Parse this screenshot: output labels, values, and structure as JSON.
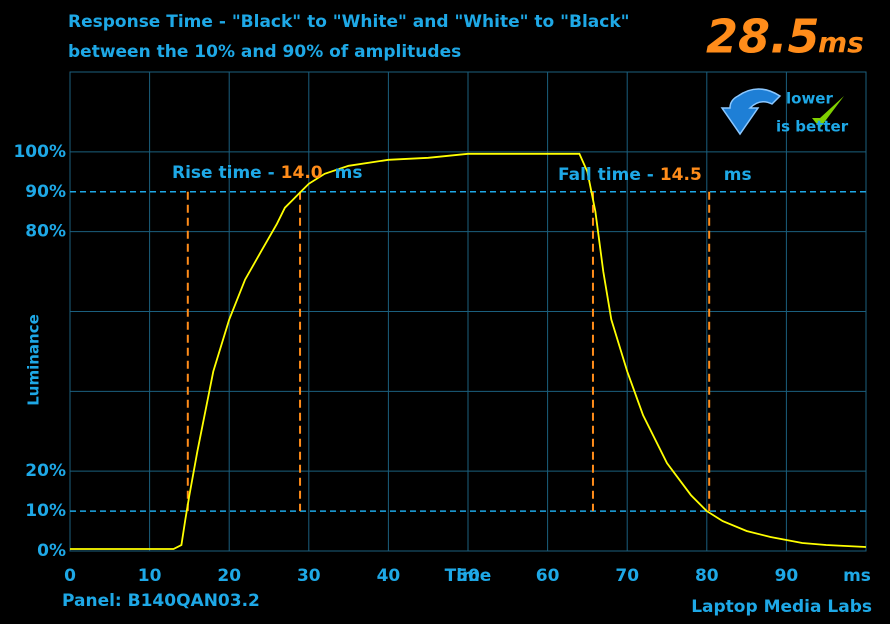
{
  "chart_data": {
    "type": "line",
    "title": [
      "Response Time - \"Black\" to \"White\" and \"White\" to \"Black\"",
      "between the 10% and 90% of amplitudes"
    ],
    "total_response": "28.5",
    "total_unit": "ms",
    "badge": [
      "lower",
      "is better"
    ],
    "y_label": "Luminance",
    "x_label": "Time",
    "x_unit": "ms",
    "panel": "Panel: B140QAN03.2",
    "credit": "Laptop Media Labs",
    "xlim": [
      0,
      100
    ],
    "ylim": [
      0,
      120
    ],
    "xticks": [
      0,
      10,
      20,
      30,
      40,
      50,
      60,
      70,
      80,
      90
    ],
    "yticks": [
      {
        "value": 0,
        "label": "0%"
      },
      {
        "value": 10,
        "label": "10%"
      },
      {
        "value": 20,
        "label": "20%"
      },
      {
        "value": 80,
        "label": "80%"
      },
      {
        "value": 90,
        "label": "90%"
      },
      {
        "value": 100,
        "label": "100%"
      }
    ],
    "xgrid": [
      0,
      10,
      20,
      30,
      40,
      50,
      60,
      70,
      80,
      90,
      100
    ],
    "ygrid": [
      0,
      20,
      40,
      60,
      80,
      100,
      120
    ],
    "reference_lines": [
      10,
      90
    ],
    "markers": [
      14.8,
      28.9,
      65.7,
      80.3
    ],
    "annotations": [
      {
        "label": "Rise time -",
        "value": "14.0",
        "unit": "ms"
      },
      {
        "label": "Fall time -",
        "value": "14.5",
        "unit": "ms"
      }
    ],
    "x": [
      0,
      13,
      14,
      14.5,
      15,
      16,
      18,
      20,
      22,
      24,
      26,
      27,
      28,
      29,
      30,
      32,
      35,
      40,
      45,
      50,
      55,
      60,
      64,
      65,
      66,
      67,
      68,
      70,
      72,
      75,
      78,
      80,
      82,
      85,
      88,
      92,
      95,
      100
    ],
    "series": [
      {
        "name": "Luminance",
        "color": "#ffff00",
        "values": [
          0.5,
          0.5,
          1.5,
          8,
          14,
          25,
          45,
          58,
          68,
          75,
          82,
          86,
          88,
          90,
          92,
          94.5,
          96.5,
          98,
          98.5,
          99.5,
          99.5,
          99.5,
          99.5,
          95,
          85,
          70,
          58,
          45,
          34,
          22,
          14,
          10,
          7.5,
          5,
          3.5,
          2,
          1.5,
          1
        ]
      }
    ]
  }
}
